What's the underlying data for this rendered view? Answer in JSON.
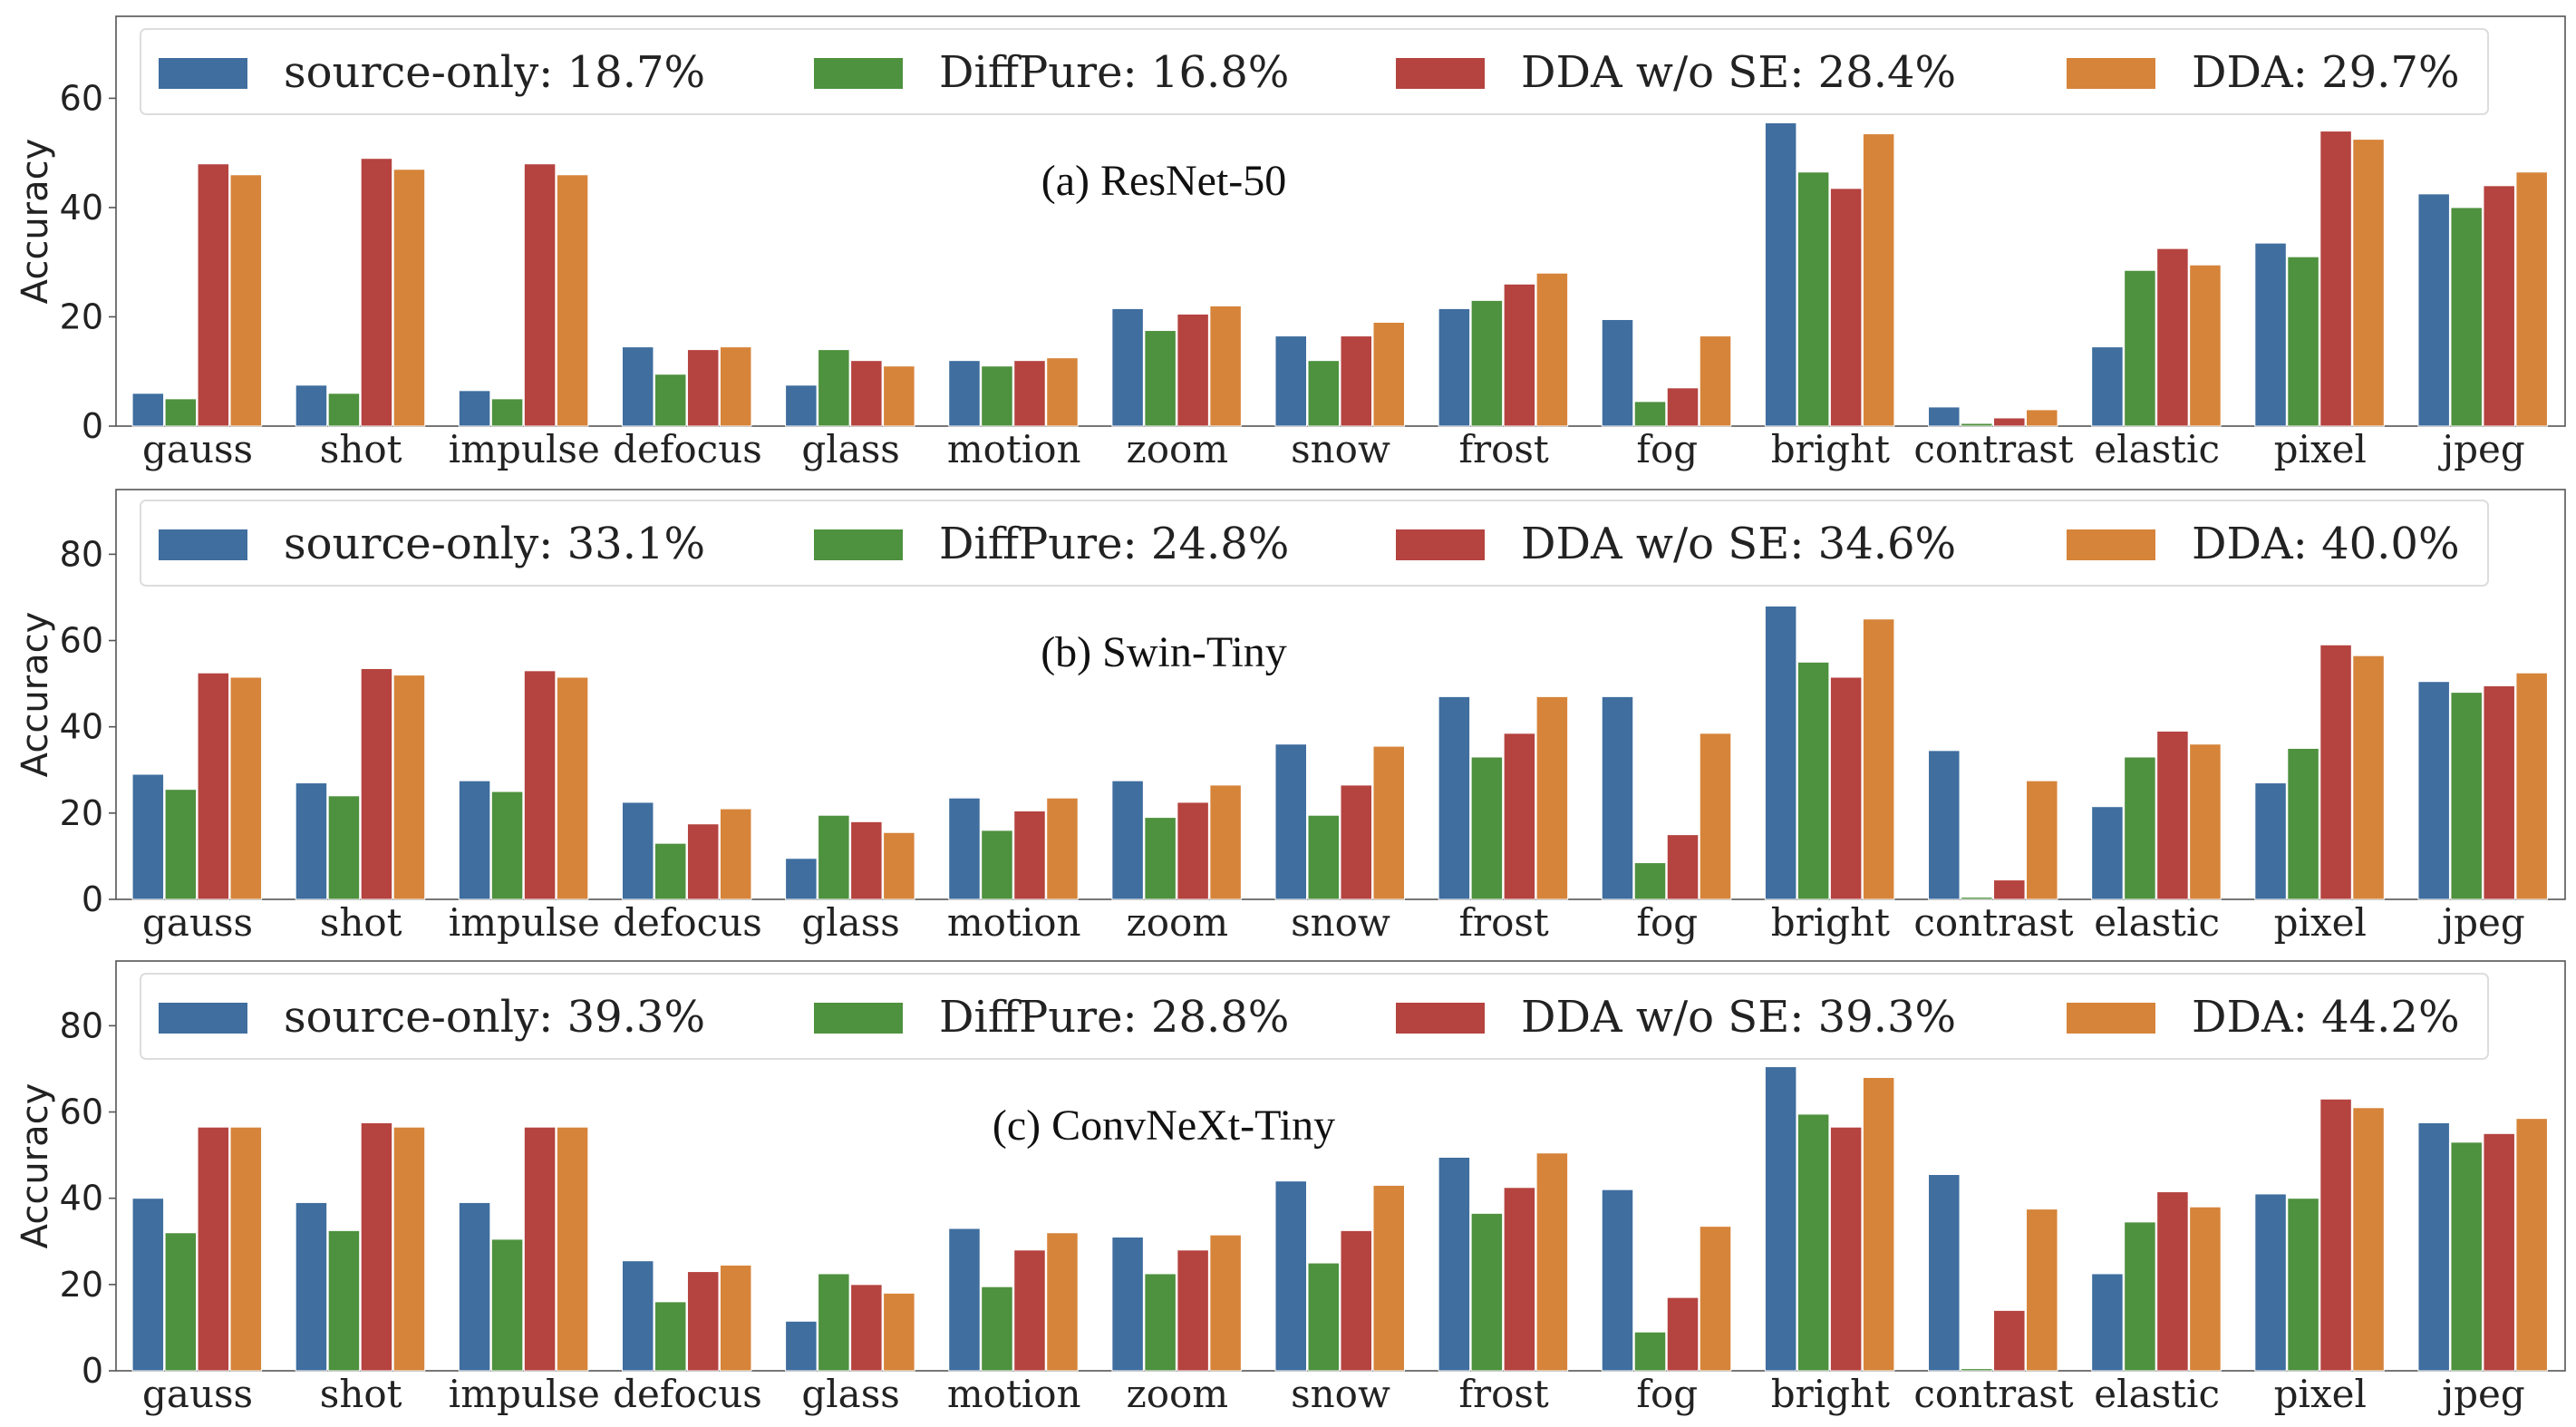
{
  "chart_data": [
    {
      "type": "bar",
      "title": "(a) ResNet-50",
      "ylabel": "Accuracy",
      "ylim": [
        0,
        75
      ],
      "yticks": [
        0,
        20,
        40,
        60
      ],
      "grid": false,
      "legend_placement": "top",
      "categories": [
        "gauss",
        "shot",
        "impulse",
        "defocus",
        "glass",
        "motion",
        "zoom",
        "snow",
        "frost",
        "fog",
        "bright",
        "contrast",
        "elastic",
        "pixel",
        "jpeg"
      ],
      "series": [
        {
          "name": "source-only: 18.7%",
          "color": "#3f6e9f",
          "values": [
            6,
            7.5,
            6.5,
            14.5,
            7.5,
            12,
            21.5,
            16.5,
            21.5,
            19.5,
            55.5,
            3.5,
            14.5,
            33.5,
            42.5
          ]
        },
        {
          "name": "DiffPure: 16.8%",
          "color": "#4e913e",
          "values": [
            5,
            6,
            5,
            9.5,
            14,
            11,
            17.5,
            12,
            23,
            4.5,
            46.5,
            0.5,
            28.5,
            31,
            40
          ]
        },
        {
          "name": "DDA w/o SE: 28.4%",
          "color": "#b5433f",
          "values": [
            48,
            49,
            48,
            14,
            12,
            12,
            20.5,
            16.5,
            26,
            7,
            43.5,
            1.5,
            32.5,
            54,
            44
          ]
        },
        {
          "name": "DDA: 29.7%",
          "color": "#d6843a",
          "values": [
            46,
            47,
            46,
            14.5,
            11,
            12.5,
            22,
            19,
            28,
            16.5,
            53.5,
            3,
            29.5,
            52.5,
            46.5
          ]
        }
      ]
    },
    {
      "type": "bar",
      "title": "(b) Swin-Tiny",
      "ylabel": "Accuracy",
      "ylim": [
        0,
        95
      ],
      "yticks": [
        0,
        20,
        40,
        60,
        80
      ],
      "grid": false,
      "legend_placement": "top",
      "categories": [
        "gauss",
        "shot",
        "impulse",
        "defocus",
        "glass",
        "motion",
        "zoom",
        "snow",
        "frost",
        "fog",
        "bright",
        "contrast",
        "elastic",
        "pixel",
        "jpeg"
      ],
      "series": [
        {
          "name": "source-only: 33.1%",
          "color": "#3f6e9f",
          "values": [
            29,
            27,
            27.5,
            22.5,
            9.5,
            23.5,
            27.5,
            36,
            47,
            47,
            68,
            34.5,
            21.5,
            27,
            50.5
          ]
        },
        {
          "name": "DiffPure: 24.8%",
          "color": "#4e913e",
          "values": [
            25.5,
            24,
            25,
            13,
            19.5,
            16,
            19,
            19.5,
            33,
            8.5,
            55,
            0.5,
            33,
            35,
            48
          ]
        },
        {
          "name": "DDA w/o SE: 34.6%",
          "color": "#b5433f",
          "values": [
            52.5,
            53.5,
            53,
            17.5,
            18,
            20.5,
            22.5,
            26.5,
            38.5,
            15,
            51.5,
            4.5,
            39,
            59,
            49.5
          ]
        },
        {
          "name": "DDA: 40.0%",
          "color": "#d6843a",
          "values": [
            51.5,
            52,
            51.5,
            21,
            15.5,
            23.5,
            26.5,
            35.5,
            47,
            38.5,
            65,
            27.5,
            36,
            56.5,
            52.5
          ]
        }
      ]
    },
    {
      "type": "bar",
      "title": "(c) ConvNeXt-Tiny",
      "ylabel": "Accuracy",
      "ylim": [
        0,
        95
      ],
      "yticks": [
        0,
        20,
        40,
        60,
        80
      ],
      "grid": false,
      "legend_placement": "top",
      "categories": [
        "gauss",
        "shot",
        "impulse",
        "defocus",
        "glass",
        "motion",
        "zoom",
        "snow",
        "frost",
        "fog",
        "bright",
        "contrast",
        "elastic",
        "pixel",
        "jpeg"
      ],
      "series": [
        {
          "name": "source-only: 39.3%",
          "color": "#3f6e9f",
          "values": [
            40,
            39,
            39,
            25.5,
            11.5,
            33,
            31,
            44,
            49.5,
            42,
            70.5,
            45.5,
            22.5,
            41,
            57.5
          ]
        },
        {
          "name": "DiffPure: 28.8%",
          "color": "#4e913e",
          "values": [
            32,
            32.5,
            30.5,
            16,
            22.5,
            19.5,
            22.5,
            25,
            36.5,
            9,
            59.5,
            0.5,
            34.5,
            40,
            53
          ]
        },
        {
          "name": "DDA w/o SE: 39.3%",
          "color": "#b5433f",
          "values": [
            56.5,
            57.5,
            56.5,
            23,
            20,
            28,
            28,
            32.5,
            42.5,
            17,
            56.5,
            14,
            41.5,
            63,
            55
          ]
        },
        {
          "name": "DDA: 44.2%",
          "color": "#d6843a",
          "values": [
            56.5,
            56.5,
            56.5,
            24.5,
            18,
            32,
            31.5,
            43,
            50.5,
            33.5,
            68,
            37.5,
            38,
            61,
            58.5
          ]
        }
      ]
    }
  ]
}
